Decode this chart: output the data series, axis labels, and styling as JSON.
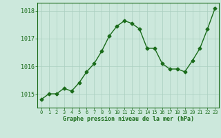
{
  "x": [
    0,
    1,
    2,
    3,
    4,
    5,
    6,
    7,
    8,
    9,
    10,
    11,
    12,
    13,
    14,
    15,
    16,
    17,
    18,
    19,
    20,
    21,
    22,
    23
  ],
  "y": [
    1014.8,
    1015.0,
    1015.0,
    1015.2,
    1015.1,
    1015.4,
    1015.8,
    1016.1,
    1016.55,
    1017.1,
    1017.45,
    1017.65,
    1017.55,
    1017.35,
    1016.65,
    1016.65,
    1016.1,
    1015.9,
    1015.9,
    1015.8,
    1016.2,
    1016.65,
    1017.35,
    1018.1
  ],
  "line_color": "#1a6b1a",
  "marker": "D",
  "marker_size": 2.5,
  "background_color": "#cce8dc",
  "grid_color": "#aacfc0",
  "xlabel": "Graphe pression niveau de la mer (hPa)",
  "xlabel_color": "#1a6b1a",
  "tick_color": "#1a6b1a",
  "ylim": [
    1014.5,
    1018.3
  ],
  "yticks": [
    1015,
    1016,
    1017,
    1018
  ],
  "xlim": [
    -0.5,
    23.5
  ],
  "xticks": [
    0,
    1,
    2,
    3,
    4,
    5,
    6,
    7,
    8,
    9,
    10,
    11,
    12,
    13,
    14,
    15,
    16,
    17,
    18,
    19,
    20,
    21,
    22,
    23
  ],
  "linewidth": 1.0
}
